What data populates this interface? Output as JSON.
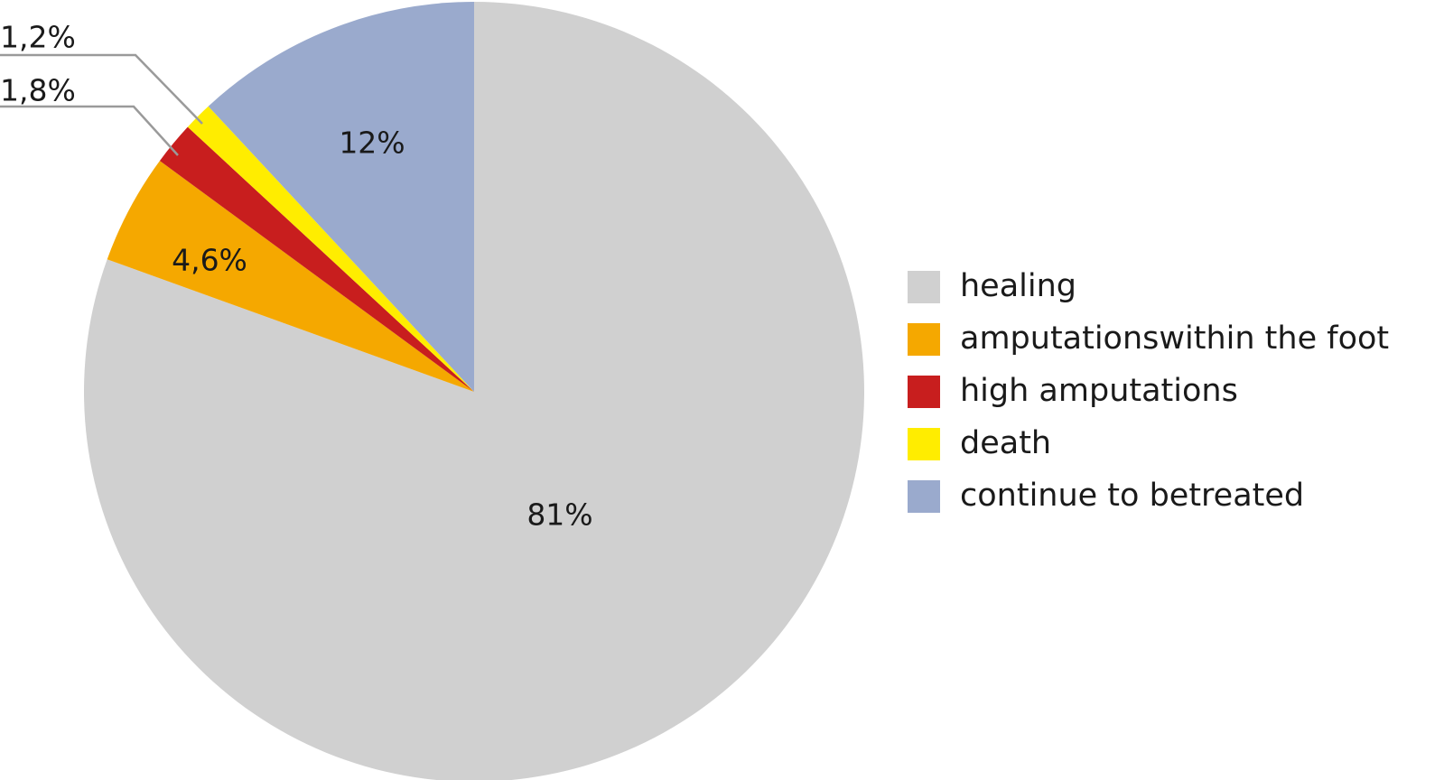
{
  "chart_data": {
    "type": "pie",
    "start": "12 o'clock",
    "direction": "clockwise",
    "slices": [
      {
        "category": "healing",
        "value": 81,
        "label": "81%",
        "color": "#d0d0d0"
      },
      {
        "category": "amputationswithin the foot",
        "value": 4.6,
        "label": "4,6%",
        "color": "#f5a800"
      },
      {
        "category": "high amputations",
        "value": 1.8,
        "label": "1,8%",
        "color": "#c81e1e"
      },
      {
        "category": "death",
        "value": 1.2,
        "label": "1,2%",
        "color": "#ffed00"
      },
      {
        "category": "continue to betreated",
        "value": 12,
        "label": "12%",
        "color": "#9aaacd"
      }
    ],
    "legend": {
      "position": "right"
    }
  }
}
